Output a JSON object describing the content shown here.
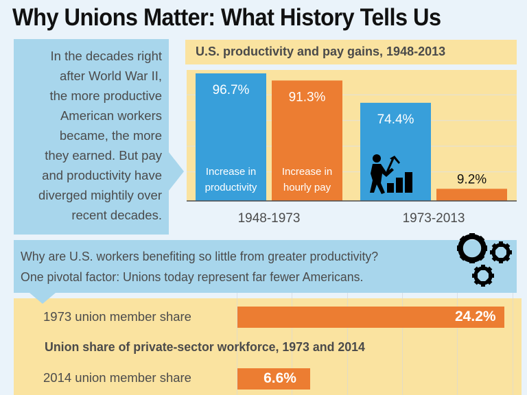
{
  "page": {
    "title": "Why Unions Matter: What History Tells Us",
    "colors": {
      "background": "#eaf3fa",
      "callout": "#a8d6ec",
      "panel": "#fae3a0",
      "blue_bar": "#389fda",
      "orange_bar": "#ec7d32"
    }
  },
  "intro_callout": {
    "text": "In the decades right\nafter World War II,\nthe more productive\nAmerican workers\nbecame, the more\nthey earned. But pay\nand productivity have\ndiverged mightily over\nrecent decades."
  },
  "question_callout": {
    "line1": "Why are U.S. workers benefiting so little from greater productivity?",
    "line2": "One pivotal factor: Unions today represent far fewer Americans."
  },
  "icons": {
    "worker": "worker-with-pickaxe-icon",
    "gears": "gears-icon"
  },
  "chart_data": [
    {
      "type": "bar",
      "title": "U.S. productivity and pay gains, 1948-2013",
      "categories": [
        "1948-1973",
        "1973-2013"
      ],
      "series": [
        {
          "name": "Increase in productivity",
          "label_line1": "Increase in",
          "label_line2": "productivity",
          "color": "#389fda",
          "values": [
            96.7,
            74.4
          ],
          "labels": [
            "96.7%",
            "74.4%"
          ]
        },
        {
          "name": "Increase in hourly pay",
          "label_line1": "Increase in",
          "label_line2": "hourly pay",
          "color": "#ec7d32",
          "values": [
            91.3,
            9.2
          ],
          "labels": [
            "91.3%",
            "9.2%"
          ]
        }
      ],
      "xlabel": "",
      "ylabel": "",
      "ylim": [
        0,
        100
      ],
      "grid": true,
      "legend": "in-bar labels"
    },
    {
      "type": "bar",
      "orientation": "horizontal",
      "title": "Union share of private-sector workforce, 1973 and 2014",
      "categories": [
        "1973 union member share",
        "2014 union member share"
      ],
      "values": [
        24.2,
        6.6
      ],
      "labels": [
        "24.2%",
        "6.6%"
      ],
      "color": "#ec7d32",
      "xlim": [
        0,
        25
      ],
      "grid": true
    }
  ]
}
